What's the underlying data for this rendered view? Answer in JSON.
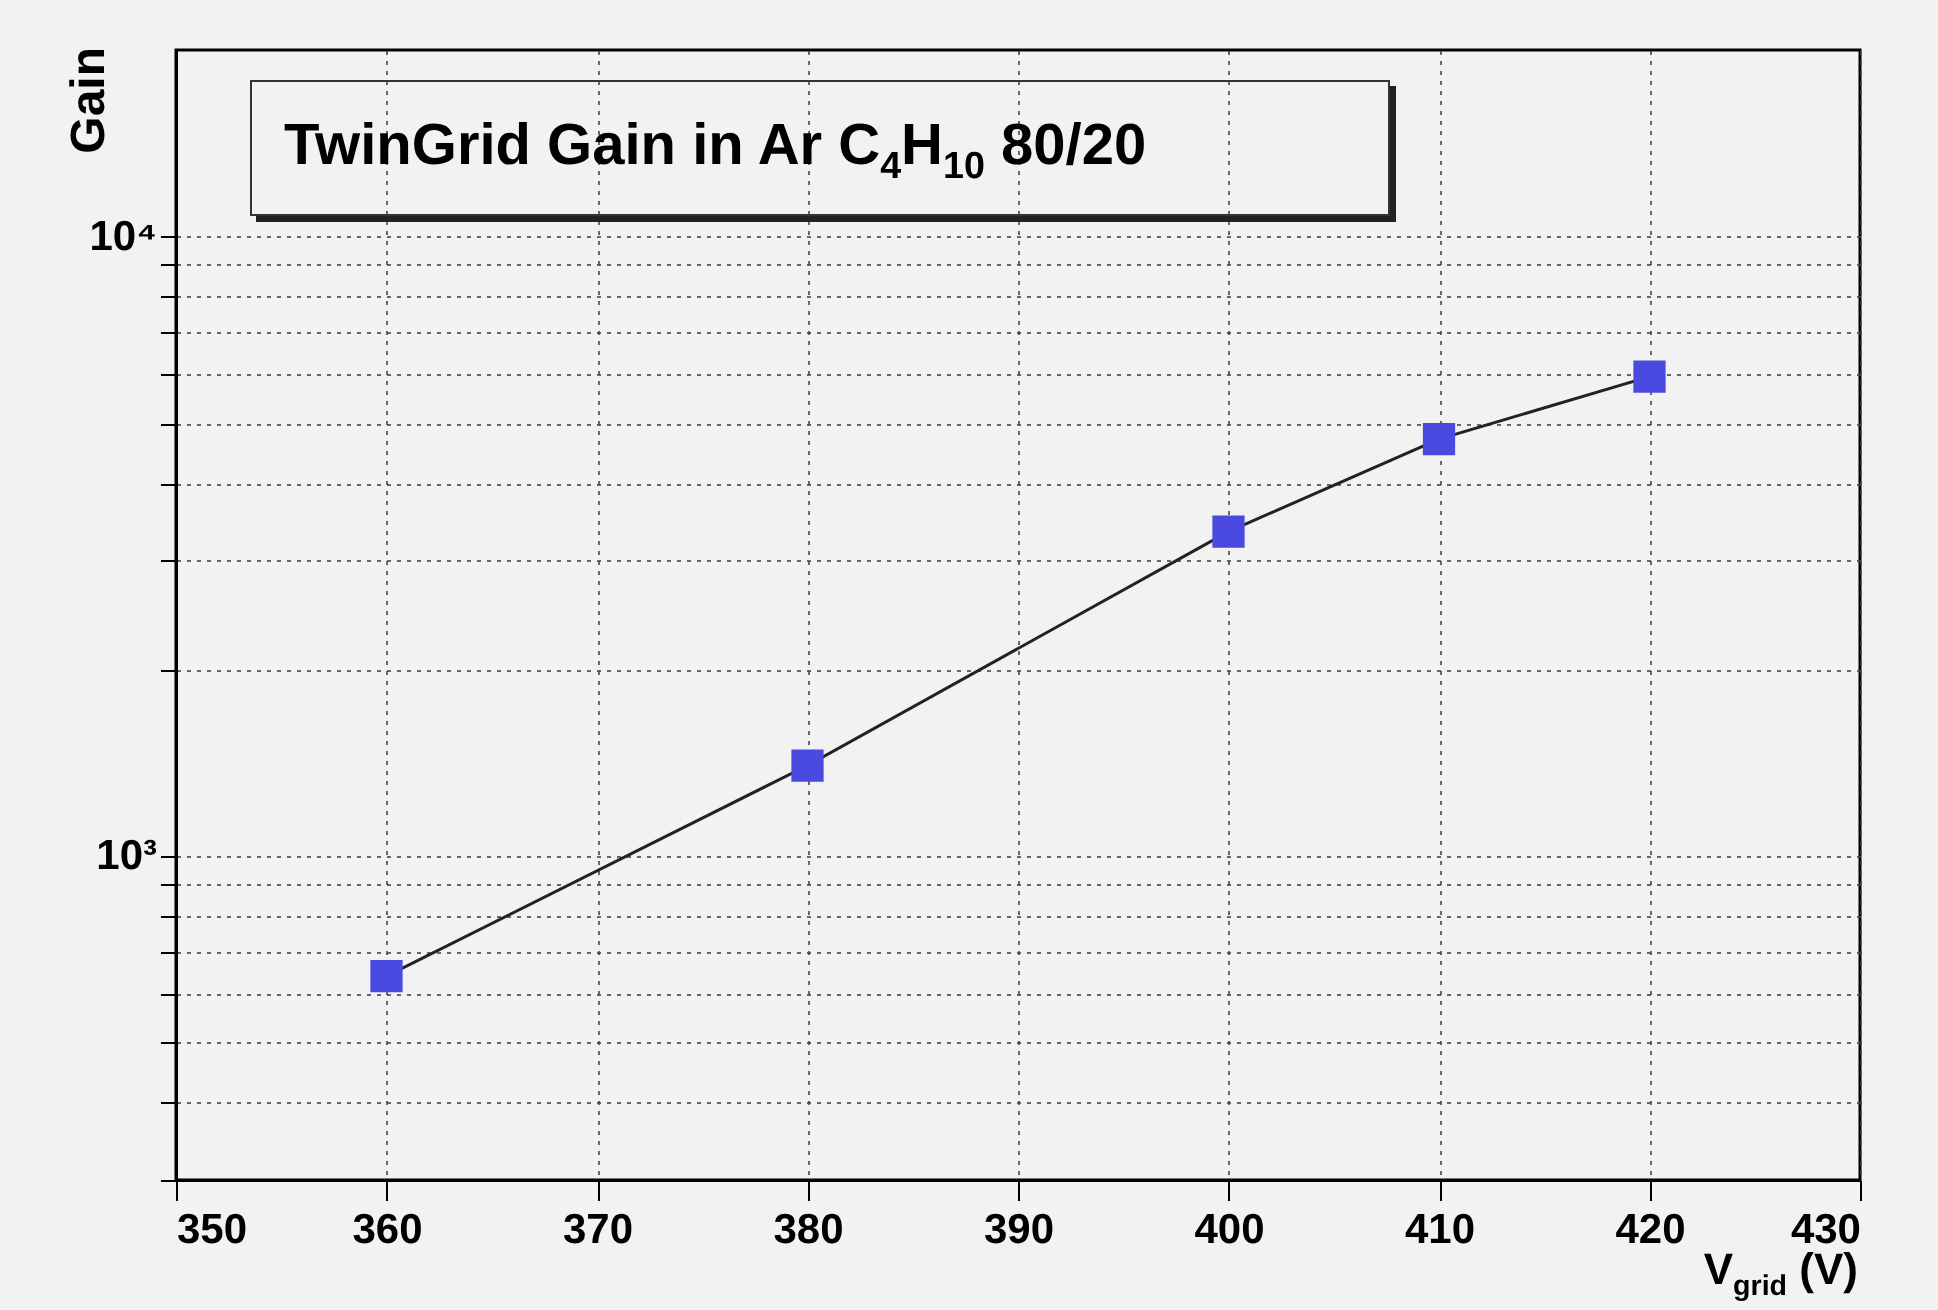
{
  "chart_data": {
    "type": "line",
    "title": "TwinGrid Gain in Ar C$_{4}$H$_{10}$ 80/20",
    "xlabel": "V$_{grid}$ (V)",
    "ylabel": "Gain",
    "x": [
      360,
      380,
      400,
      410,
      420
    ],
    "series": [
      {
        "color": "#4a4ae0",
        "values": [
          640,
          1400,
          3340,
          4710,
          5940
        ]
      }
    ],
    "xlim": [
      350,
      430
    ],
    "xticks": [
      350,
      360,
      370,
      380,
      390,
      400,
      410,
      420,
      430
    ],
    "ylim": [
      300,
      20000
    ],
    "log": "y",
    "yticks": [
      {
        "value": 300,
        "label": null
      },
      {
        "value": 400,
        "label": null
      },
      {
        "value": 500,
        "label": null
      },
      {
        "value": 600,
        "label": null
      },
      {
        "value": 700,
        "label": null
      },
      {
        "value": 800,
        "label": null
      },
      {
        "value": 900,
        "label": null
      },
      {
        "value": 1000,
        "label": "10³"
      },
      {
        "value": 2000,
        "label": null
      },
      {
        "value": 3000,
        "label": null
      },
      {
        "value": 4000,
        "label": null
      },
      {
        "value": 5000,
        "label": null
      },
      {
        "value": 6000,
        "label": null
      },
      {
        "value": 7000,
        "label": null
      },
      {
        "value": 8000,
        "label": null
      },
      {
        "value": 9000,
        "label": null
      },
      {
        "value": 10000,
        "label": "10⁴"
      }
    ],
    "grid": true,
    "marker": "square",
    "line_style": "solid"
  }
}
